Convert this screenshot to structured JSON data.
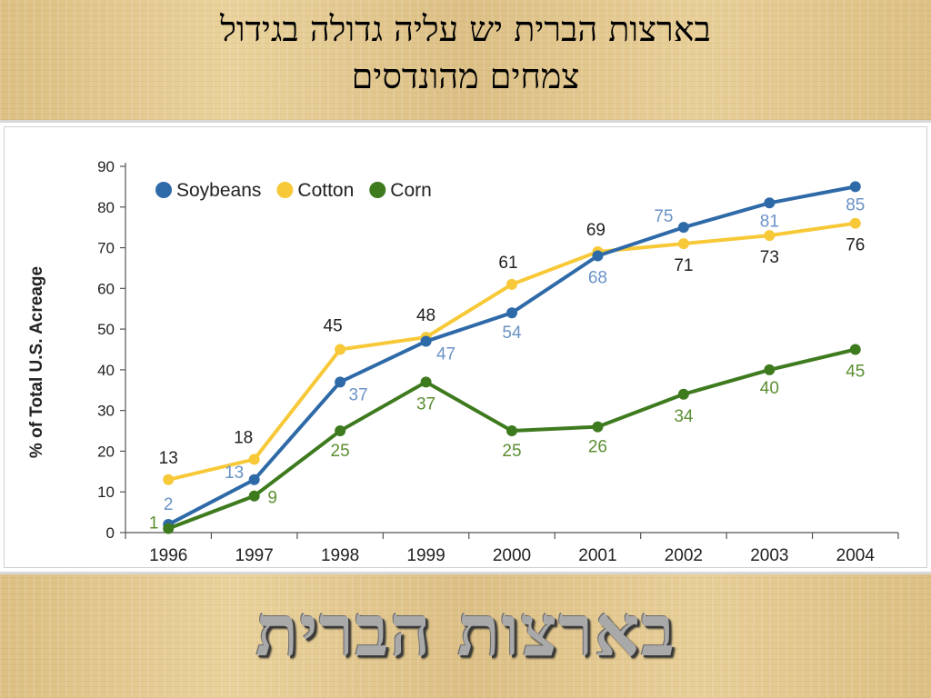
{
  "slide": {
    "title_line1": "בארצות הברית יש עליה גדולה בגידול",
    "title_line2": "צמחים מהונדסים",
    "bottom_text": "בארצות הברית"
  },
  "chart_data": {
    "type": "line",
    "ylabel": "% of Total U.S. Acreage",
    "xlabel": "",
    "x": [
      "1996",
      "1997",
      "1998",
      "1999",
      "2000",
      "2001",
      "2002",
      "2003",
      "2004"
    ],
    "ylim": [
      0,
      90
    ],
    "yticks": [
      0,
      10,
      20,
      30,
      40,
      50,
      60,
      70,
      80,
      90
    ],
    "grid": false,
    "legend": "top-left",
    "series": [
      {
        "name": "Soybeans",
        "color": "#2f6aa8",
        "label_color": "#6a93c6",
        "values": [
          2,
          13,
          37,
          47,
          54,
          68,
          75,
          81,
          85
        ],
        "labels": [
          "2",
          "13",
          "37",
          "47",
          "54",
          "68",
          "75",
          "81",
          "85"
        ]
      },
      {
        "name": "Cotton",
        "color": "#f7c938",
        "label_color": "#222222",
        "values": [
          13,
          18,
          45,
          48,
          61,
          69,
          71,
          73,
          76
        ],
        "labels": [
          "13",
          "18",
          "45",
          "48",
          "61",
          "69",
          "71",
          "73",
          "76"
        ]
      },
      {
        "name": "Corn",
        "color": "#3e7a1e",
        "label_color": "#5c8f32",
        "values": [
          1,
          9,
          25,
          37,
          25,
          26,
          34,
          40,
          45
        ],
        "labels": [
          "1",
          "9",
          "25",
          "37",
          "25",
          "26",
          "34",
          "40",
          "45"
        ]
      }
    ]
  }
}
